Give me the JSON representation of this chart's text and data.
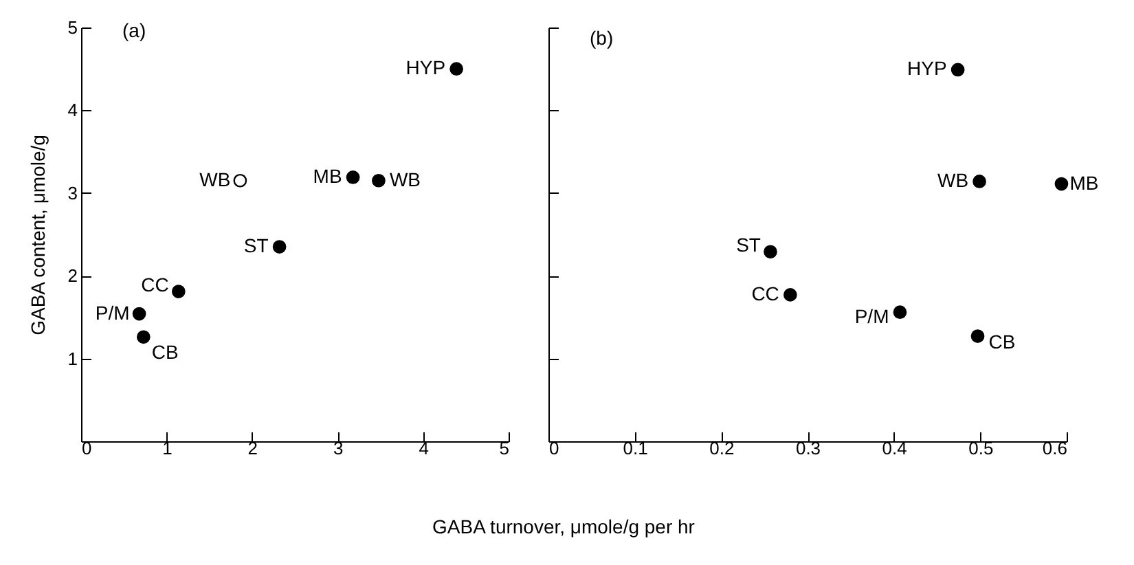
{
  "chart_data": [
    {
      "type": "scatter",
      "title": "(a)",
      "xlabel": "GABA turnover, μmole/g per hr",
      "ylabel": "GABA content, μmole/g",
      "marker": "circle",
      "grid": false,
      "xlim": [
        0,
        5
      ],
      "xticks": [
        0,
        1,
        2,
        3,
        4,
        5
      ],
      "ylim": [
        0,
        5
      ],
      "yticks": [
        {
          "value": 0,
          "label": null
        },
        1,
        2,
        3,
        4,
        5
      ],
      "series": [
        {
          "name": "HYP",
          "color": "#000000",
          "x": [
            4.39
          ],
          "values": [
            4.5
          ]
        },
        {
          "name": "MB",
          "color": "#000000",
          "x": [
            3.18
          ],
          "values": [
            3.19
          ]
        },
        {
          "name": "WB",
          "color": "#000000",
          "x": [
            3.48
          ],
          "values": [
            3.15
          ]
        },
        {
          "name": "WB",
          "color": "#ffffff",
          "x": [
            1.86
          ],
          "values": [
            3.15
          ]
        },
        {
          "name": "ST",
          "color": "#000000",
          "x": [
            2.32
          ],
          "values": [
            2.35
          ]
        },
        {
          "name": "CC",
          "color": "#000000",
          "x": [
            1.14
          ],
          "values": [
            1.81
          ]
        },
        {
          "name": "P/M",
          "color": "#000000",
          "x": [
            0.68
          ],
          "values": [
            1.54
          ]
        },
        {
          "name": "CB",
          "color": "#000000",
          "x": [
            0.73
          ],
          "values": [
            1.26
          ]
        }
      ]
    },
    {
      "type": "scatter",
      "title": "(b)",
      "marker": "circle",
      "grid": false,
      "tick_labels": "x",
      "xlim": [
        0,
        0.6
      ],
      "xticks": [
        0,
        0.1,
        0.2,
        0.3,
        0.4,
        0.5,
        0.6
      ],
      "ylim": [
        0,
        5
      ],
      "yticks": [
        0,
        1,
        2,
        3,
        4,
        5
      ],
      "series": [
        {
          "name": "HYP",
          "color": "#000000",
          "x": [
            0.474
          ],
          "values": [
            4.49
          ]
        },
        {
          "name": "WB",
          "color": "#000000",
          "x": [
            0.499
          ],
          "values": [
            3.14
          ]
        },
        {
          "name": "MB",
          "color": "#000000",
          "x": [
            0.594
          ],
          "values": [
            3.11
          ]
        },
        {
          "name": "ST",
          "color": "#000000",
          "x": [
            0.257
          ],
          "values": [
            2.29
          ]
        },
        {
          "name": "CC",
          "color": "#000000",
          "x": [
            0.28
          ],
          "values": [
            1.77
          ]
        },
        {
          "name": "P/M",
          "color": "#000000",
          "x": [
            0.407
          ],
          "values": [
            1.56
          ]
        },
        {
          "name": "CB",
          "color": "#000000",
          "x": [
            0.497
          ],
          "values": [
            1.27
          ]
        }
      ]
    }
  ]
}
